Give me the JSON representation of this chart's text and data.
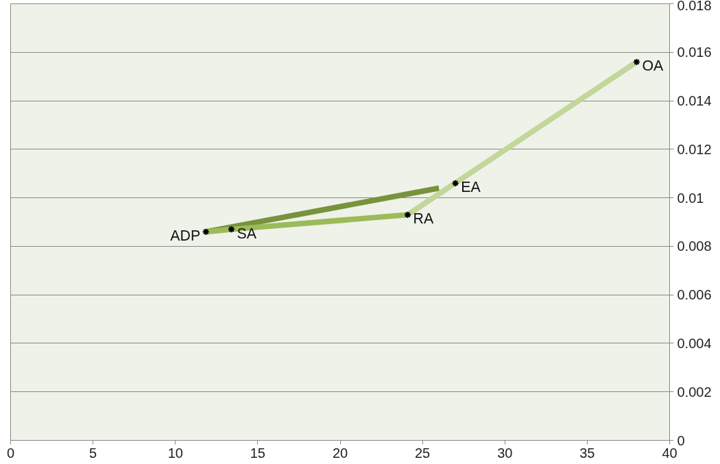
{
  "chart_data": {
    "type": "line",
    "xlim": [
      0,
      40
    ],
    "xticks": [
      0,
      5,
      10,
      15,
      20,
      25,
      30,
      35,
      40
    ],
    "ylim": [
      0,
      0.018
    ],
    "yticks": [
      0,
      0.002,
      0.004,
      0.006,
      0.008,
      0.01,
      0.012,
      0.014,
      0.016,
      0.018
    ],
    "grid": "y",
    "line_style": "solid",
    "series": [
      {
        "color": "#77933c",
        "x": [
          11.85,
          26.0
        ],
        "values": [
          0.0086,
          0.0104
        ]
      },
      {
        "color": "#9bbb59",
        "x": [
          11.85,
          13.4,
          24.1
        ],
        "values": [
          0.0086,
          0.0087,
          0.0093
        ]
      },
      {
        "color": "#c3d69b",
        "x": [
          24.1,
          38.0
        ],
        "values": [
          0.0093,
          0.0156
        ]
      },
      {
        "type": "scatter",
        "marker": "cross",
        "color": "#000000",
        "x": [
          11.85,
          13.4,
          24.1,
          27.0,
          38.0
        ],
        "values": [
          0.0086,
          0.0087,
          0.0093,
          0.0106,
          0.0156
        ]
      }
    ],
    "annotations": [
      {
        "text": "ADP",
        "x": 11.85,
        "y": 0.0086
      },
      {
        "text": "SA",
        "x": 13.4,
        "y": 0.0087
      },
      {
        "text": "RA",
        "x": 24.1,
        "y": 0.0093
      },
      {
        "text": "EA",
        "x": 27.0,
        "y": 0.0106
      },
      {
        "text": "OA",
        "x": 38.0,
        "y": 0.0156
      }
    ]
  }
}
